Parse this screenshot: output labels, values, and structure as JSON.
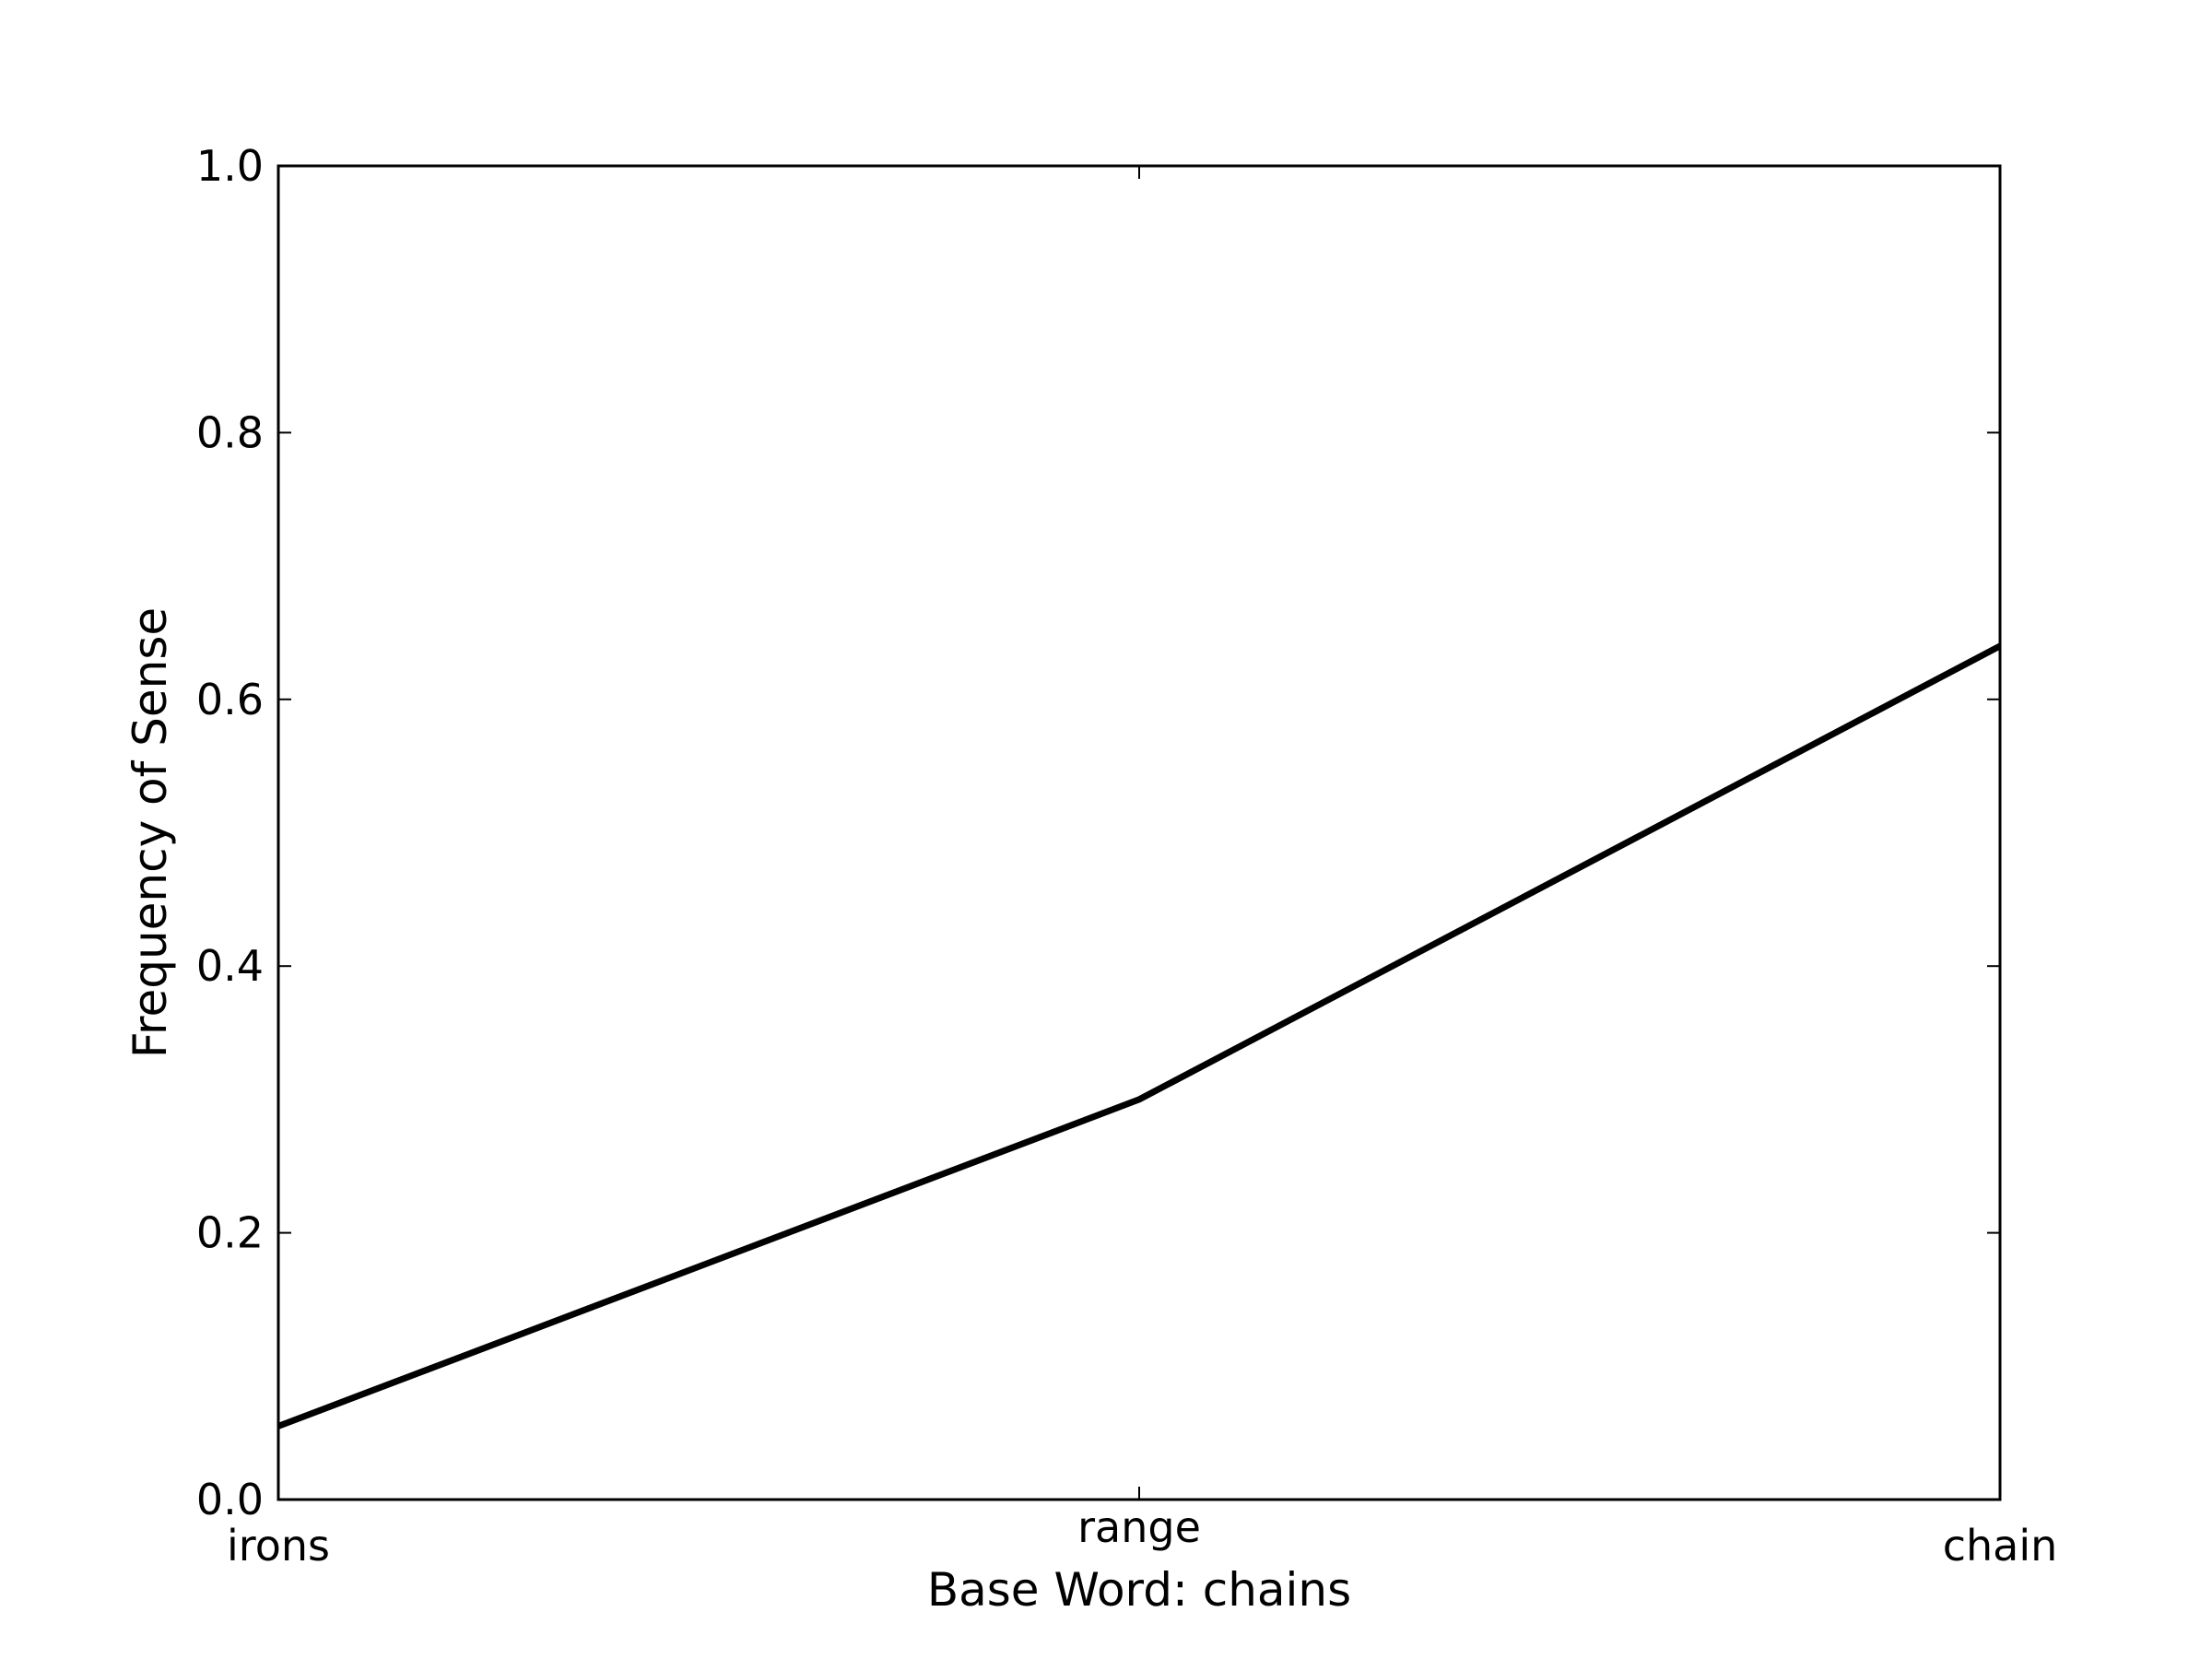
{
  "chart_data": {
    "type": "line",
    "title": "",
    "xlabel": "Base Word: chains",
    "ylabel": "Frequency of Sense",
    "categories": [
      "irons",
      "range",
      "chain"
    ],
    "series": [
      {
        "values": [
          0.055,
          0.3,
          0.64
        ],
        "color": "#000000"
      }
    ],
    "ylim": [
      0.0,
      1.0
    ],
    "yticks": [
      0.0,
      0.2,
      0.4,
      0.6,
      0.8,
      1.0
    ],
    "ytick_labels": [
      "0.0",
      "0.2",
      "0.4",
      "0.6",
      "0.8",
      "1.0"
    ],
    "grid": false,
    "legend": "none"
  }
}
